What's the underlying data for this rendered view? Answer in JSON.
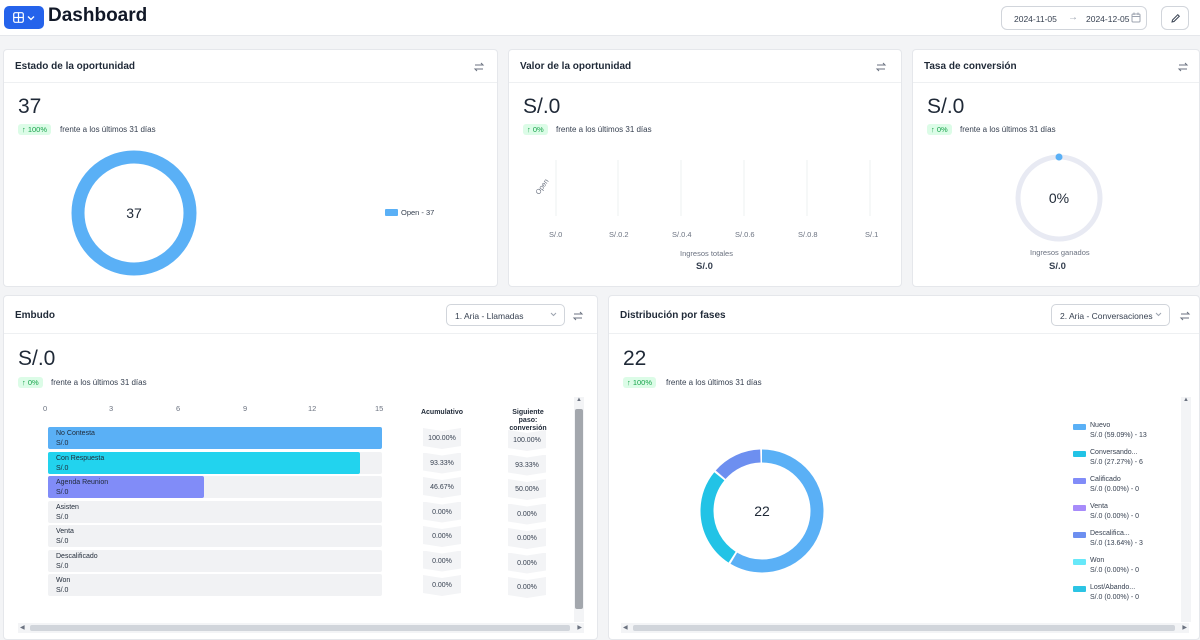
{
  "header": {
    "title": "Dashboard",
    "date_start": "2024-11-05",
    "date_end": "2024-12-05",
    "accent_color": "#2563eb"
  },
  "estado": {
    "title": "Estado de la oportunidad",
    "value": "37",
    "badge": "↑ 100%",
    "compare": "frente a los últimos 31 días",
    "center": "37",
    "legend_label": "Open - 37",
    "color": "#5ab0f6"
  },
  "valor": {
    "title": "Valor de la oportunidad",
    "value": "S/.0",
    "badge": "↑ 0%",
    "compare": "frente a los últimos 31 días",
    "category": "Open",
    "ticks": [
      "S/.0",
      "S/.0.2",
      "S/.0.4",
      "S/.0.6",
      "S/.0.8",
      "S/.1"
    ],
    "footer_label": "Ingresos totales",
    "footer_value": "S/.0"
  },
  "tasa": {
    "title": "Tasa de conversión",
    "value": "S/.0",
    "badge": "↑ 0%",
    "compare": "frente a los últimos 31 días",
    "gauge_text": "0%",
    "gauge_fraction": 0,
    "footer_label": "Ingresos ganados",
    "footer_value": "S/.0"
  },
  "embudo": {
    "title": "Embudo",
    "select": "1. Aria - Llamadas",
    "value": "S/.0",
    "badge": "↑ 0%",
    "compare": "frente a los últimos 31 días",
    "axis_ticks": [
      "0",
      "3",
      "6",
      "9",
      "12",
      "15"
    ],
    "col_acumulativo": "Acumulativo",
    "col_siguiente": "Siguiente paso: conversión"
  },
  "distribucion": {
    "title": "Distribución por fases",
    "select": "2. Aria - Conversaciones",
    "value": "22",
    "badge": "↑ 100%",
    "compare": "frente a los últimos 31 días",
    "center": "22"
  },
  "chart_data": [
    {
      "type": "pie",
      "title": "Estado de la oportunidad",
      "categories": [
        "Open"
      ],
      "values": [
        37
      ],
      "legend": "right"
    },
    {
      "type": "bar",
      "title": "Valor de la oportunidad",
      "categories": [
        "Open"
      ],
      "values": [
        0
      ],
      "xlim": [
        0,
        1
      ],
      "xlabel": "Ingresos totales"
    },
    {
      "type": "bar",
      "title": "Embudo",
      "categories": [
        "No Contesta",
        "Con Respuesta",
        "Agenda Reunion",
        "Asisten",
        "Venta",
        "Descalificado",
        "Won"
      ],
      "values": [
        15,
        14,
        7,
        0,
        0,
        0,
        0
      ],
      "xlim": [
        0,
        15
      ],
      "value_labels": [
        "S/.0",
        "S/.0",
        "S/.0",
        "S/.0",
        "S/.0",
        "S/.0",
        "S/.0"
      ],
      "acumulativo": [
        "100.00%",
        "93.33%",
        "46.67%",
        "0.00%",
        "0.00%",
        "0.00%",
        "0.00%"
      ],
      "siguiente": [
        "100.00%",
        "93.33%",
        "50.00%",
        "0.00%",
        "0.00%",
        "0.00%",
        "0.00%"
      ],
      "colors": [
        "#5ab0f6",
        "#22d3ee",
        "#818cf8"
      ]
    },
    {
      "type": "pie",
      "title": "Distribución por fases",
      "categories": [
        "Nuevo",
        "Conversando...",
        "Calificado",
        "Venta",
        "Descalifica...",
        "Won",
        "Lost/Abando..."
      ],
      "values": [
        13,
        6,
        0,
        0,
        3,
        0,
        0
      ],
      "details": [
        "S/.0 (59.09%) - 13",
        "S/.0 (27.27%) - 6",
        "S/.0 (0.00%) - 0",
        "S/.0 (0.00%) - 0",
        "S/.0 (13.64%) - 3",
        "S/.0 (0.00%) - 0",
        "S/.0 (0.00%) - 0"
      ],
      "colors": [
        "#5ab0f6",
        "#22c3e6",
        "#818cf8",
        "#a78bfa",
        "#6d8ff0",
        "#67e8f9",
        "#2cc4e4"
      ],
      "legend": "right"
    }
  ]
}
